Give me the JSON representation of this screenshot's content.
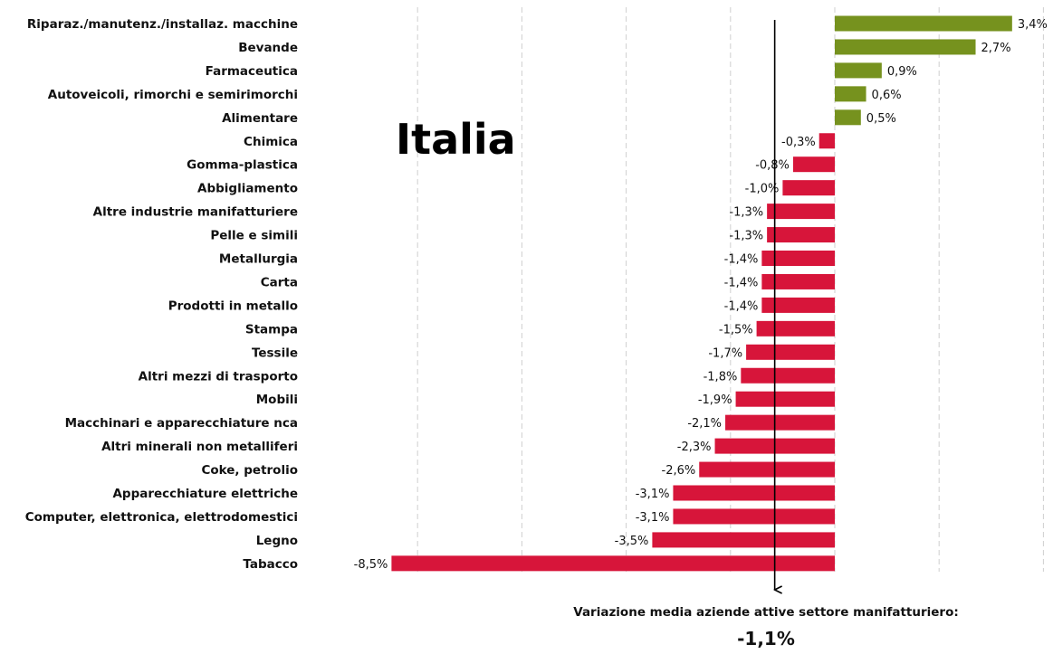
{
  "chart_data": {
    "type": "bar",
    "orientation": "horizontal",
    "title": "Italia",
    "categories": [
      "Riparaz./manutenz./installaz. macchine",
      "Bevande",
      "Farmaceutica",
      "Autoveicoli, rimorchi e semirimorchi",
      "Alimentare",
      "Chimica",
      "Gomma-plastica",
      "Abbigliamento",
      "Altre industrie manifatturiere",
      "Pelle e simili",
      "Metallurgia",
      "Carta",
      "Prodotti in metallo",
      "Stampa",
      "Tessile",
      "Altri mezzi di trasporto",
      "Mobili",
      "Macchinari e apparecchiature nca",
      "Altri minerali non metalliferi",
      "Coke, petrolio",
      "Apparecchiature elettriche",
      "Computer, elettronica, elettrodomestici",
      "Legno",
      "Tabacco"
    ],
    "values": [
      3.4,
      2.7,
      0.9,
      0.6,
      0.5,
      -0.3,
      -0.8,
      -1.0,
      -1.3,
      -1.3,
      -1.4,
      -1.4,
      -1.4,
      -1.5,
      -1.7,
      -1.8,
      -1.9,
      -2.1,
      -2.3,
      -2.6,
      -3.1,
      -3.1,
      -3.5,
      -8.5
    ],
    "value_labels": [
      "3,4%",
      "2,7%",
      "0,9%",
      "0,6%",
      "0,5%",
      "-0,3%",
      "-0,8%",
      "-1,0%",
      "-1,3%",
      "-1,3%",
      "-1,4%",
      "-1,4%",
      "-1,4%",
      "-1,5%",
      "-1,7%",
      "-1,8%",
      "-1,9%",
      "-2,1%",
      "-2,3%",
      "-2,6%",
      "-3,1%",
      "-3,1%",
      "-3,5%",
      "-8,5%"
    ],
    "xlim": [
      -9.0,
      4.0
    ],
    "gridlines": [
      -8,
      -6,
      -4,
      -2,
      2,
      4
    ],
    "grid": true,
    "grid_style": "dashed vertical",
    "colors": {
      "positive": "#76921E",
      "negative": "#D7153A"
    },
    "reference": {
      "value": -1.1,
      "text": "Variazione media aziende attive settore manifatturiero:",
      "value_label": "-1,1%"
    }
  }
}
